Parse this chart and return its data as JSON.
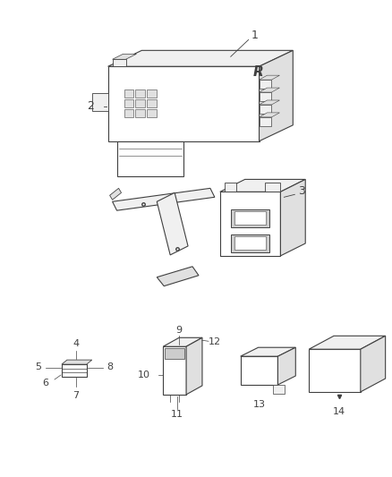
{
  "background_color": "#ffffff",
  "line_color": "#404040",
  "fig_width": 4.38,
  "fig_height": 5.33,
  "dpi": 100,
  "face_white": "#ffffff",
  "face_light": "#f0f0f0",
  "face_mid": "#e0e0e0",
  "face_dark": "#cccccc",
  "lw_main": 0.8,
  "lw_detail": 0.5,
  "lw_thin": 0.4
}
